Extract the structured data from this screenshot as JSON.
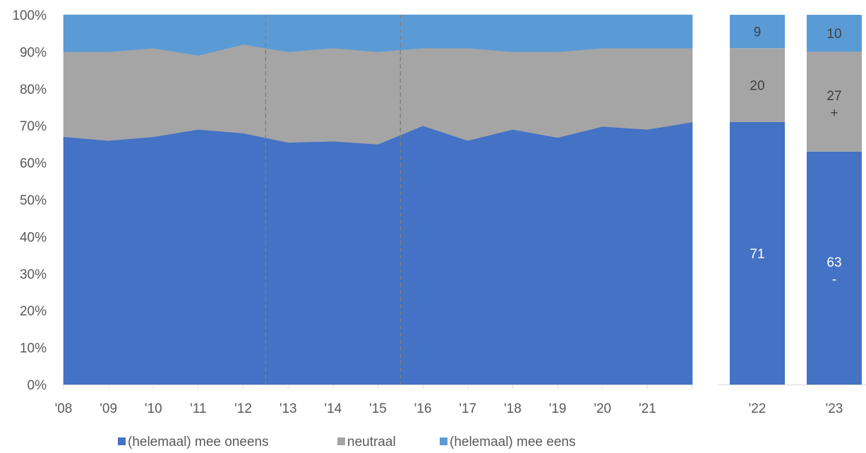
{
  "chart_data": {
    "type": "area",
    "stacked": true,
    "ylim": [
      0,
      100
    ],
    "y_ticks": [
      "0%",
      "10%",
      "20%",
      "30%",
      "40%",
      "50%",
      "60%",
      "70%",
      "80%",
      "90%",
      "100%"
    ],
    "y_tick_values": [
      0,
      10,
      20,
      30,
      40,
      50,
      60,
      70,
      80,
      90,
      100
    ],
    "grid": false,
    "legend_position": "bottom",
    "colors": {
      "oneens": "#4472C4",
      "neutraal": "#A5A5A5",
      "eens": "#5B9BD5"
    },
    "area": {
      "categories": [
        "'08",
        "'09",
        "'10",
        "'11",
        "'12",
        "'13",
        "'14",
        "'15",
        "'16",
        "'17",
        "'18",
        "'19",
        "'20",
        "'21"
      ],
      "x_end_value": 2022,
      "x_values": [
        2008,
        2009,
        2010,
        2011,
        2012,
        2013,
        2014,
        2015,
        2016,
        2017,
        2018,
        2019,
        2020,
        2021,
        2022
      ],
      "series": [
        {
          "name": "(helemaal) mee oneens",
          "color": "#4472C4",
          "values": [
            67,
            66,
            67,
            69,
            68,
            65.5,
            65.8,
            65,
            70,
            66,
            69,
            66.8,
            69.8,
            69,
            71
          ]
        },
        {
          "name": "neutraal",
          "color": "#A5A5A5",
          "values": [
            23,
            24,
            24,
            20,
            24,
            24.5,
            25.2,
            25,
            21,
            25,
            21,
            23.2,
            21.2,
            22,
            20
          ]
        },
        {
          "name": "(helemaal) mee eens",
          "color": "#5B9BD5",
          "values": [
            10,
            10,
            9,
            11,
            8,
            10,
            9,
            10,
            9,
            9,
            10,
            10,
            9,
            9,
            9
          ]
        }
      ],
      "breaks_after": [
        2012.5,
        2015.5
      ]
    },
    "bars": {
      "categories": [
        "'22",
        "'23"
      ],
      "series": [
        {
          "name": "(helemaal) mee oneens",
          "values": [
            71,
            63
          ],
          "labels": [
            "71",
            "63"
          ],
          "markers": [
            "",
            "-"
          ]
        },
        {
          "name": "neutraal",
          "values": [
            20,
            27
          ],
          "labels": [
            "20",
            "27"
          ],
          "markers": [
            "",
            "+"
          ]
        },
        {
          "name": "(helemaal) mee eens",
          "values": [
            9,
            10
          ],
          "labels": [
            "9",
            "10"
          ],
          "markers": [
            "",
            ""
          ]
        }
      ]
    },
    "legend": [
      {
        "label": "(helemaal) mee oneens",
        "color": "#4472C4"
      },
      {
        "label": "neutraal",
        "color": "#A5A5A5"
      },
      {
        "label": "(helemaal) mee eens",
        "color": "#5B9BD5"
      }
    ]
  }
}
